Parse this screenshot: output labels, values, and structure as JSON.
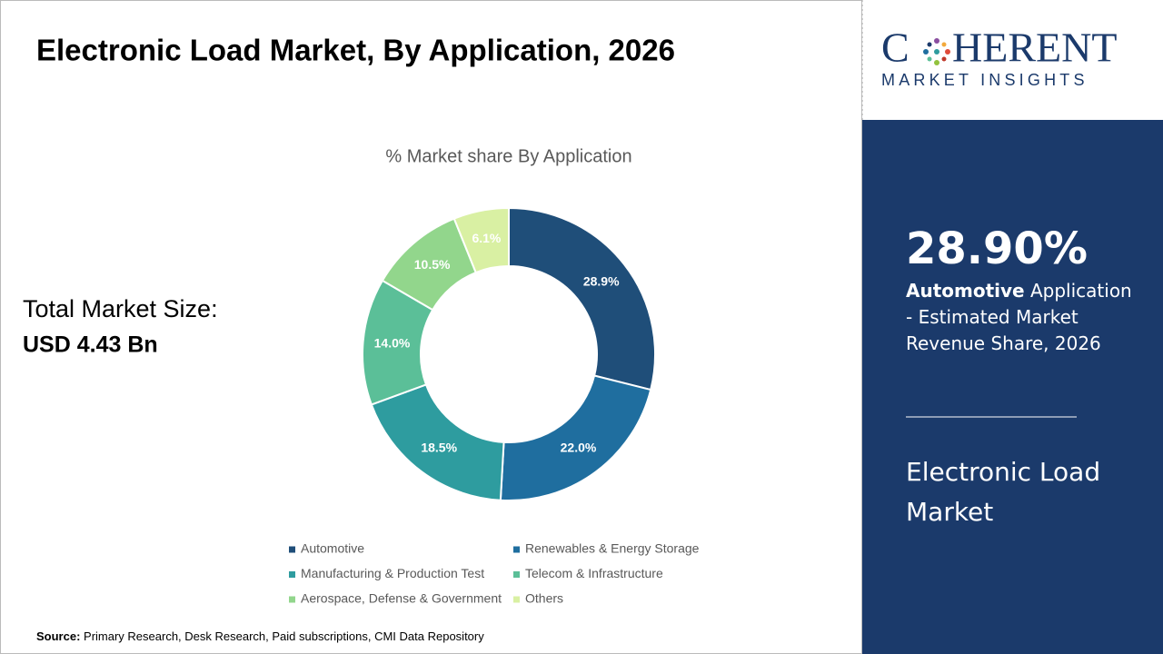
{
  "header": {
    "title": "Electronic Load Market, By Application, 2026"
  },
  "market_size": {
    "label": "Total Market Size:",
    "value": "USD 4.43 Bn"
  },
  "source": {
    "label": "Source:",
    "text": "Primary Research, Desk Research, Paid subscriptions, CMI Data Repository"
  },
  "logo": {
    "left": "C",
    "right": "HERENT",
    "tagline": "MARKET INSIGHTS"
  },
  "sidebar": {
    "highlight": "28.90%",
    "highlight_bold": "Automotive",
    "highlight_text": "Application - Estimated Market Revenue Share, 2026",
    "market": "Electronic Load Market"
  },
  "chart_data": {
    "type": "donut",
    "title": "% Market share By Application",
    "categories": [
      "Automotive",
      "Renewables & Energy Storage",
      "Manufacturing & Production Test",
      "Telecom & Infrastructure",
      "Aerospace, Defense & Government",
      "Others"
    ],
    "values": [
      28.9,
      22.0,
      18.5,
      14.0,
      10.5,
      6.1
    ],
    "value_labels": [
      "28.9%",
      "22.0%",
      "18.5%",
      "14.0%",
      "10.5%",
      "6.1%"
    ],
    "colors": [
      "#1f4e79",
      "#1f6e9f",
      "#2e9c9f",
      "#5bbf98",
      "#92d68c",
      "#d9f0a3"
    ],
    "legend": "bottom"
  }
}
